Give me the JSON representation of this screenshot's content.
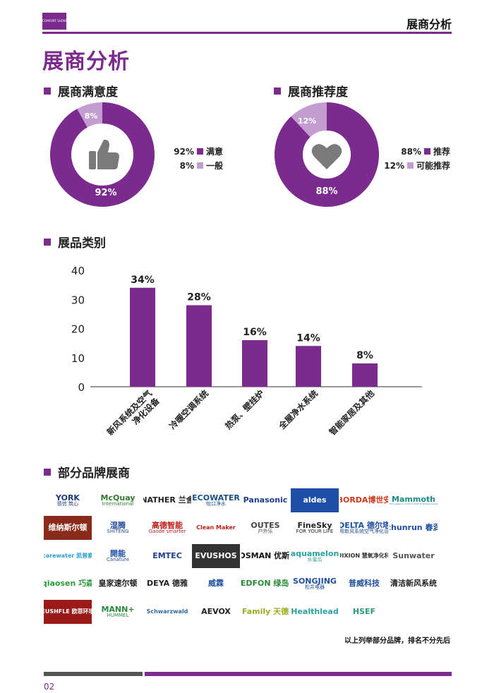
{
  "header": {
    "title": "展商分析",
    "logo_text": "COMFORT SHOW"
  },
  "page_title": "展商分析",
  "satisfaction": {
    "title": "展商满意度",
    "icon": "thumbs-up-icon",
    "slices": [
      {
        "label": "满意",
        "value": 92,
        "text": "92%",
        "color": "#7b2a8e"
      },
      {
        "label": "一般",
        "value": 8,
        "text": "8%",
        "color": "#c39dd0"
      }
    ]
  },
  "recommendation": {
    "title": "展商推荐度",
    "icon": "heart-icon",
    "slices": [
      {
        "label": "推荐",
        "value": 88,
        "text": "88%",
        "color": "#7b2a8e"
      },
      {
        "label": "可能推荐",
        "value": 12,
        "text": "12%",
        "color": "#c39dd0"
      }
    ]
  },
  "chart_data": {
    "type": "bar",
    "title": "展品类别",
    "categories": [
      "新风系统及空气净化设备",
      "冷暖空调系统",
      "热泵、壁挂炉",
      "全屋净水系统",
      "智能家居及其他"
    ],
    "category_lines": [
      [
        "新风系统及空气",
        "净化设备"
      ],
      [
        "冷暖空调系统"
      ],
      [
        "热泵、壁挂炉"
      ],
      [
        "全屋净水系统"
      ],
      [
        "智能家居及其他"
      ]
    ],
    "values": [
      34,
      28,
      16,
      14,
      8
    ],
    "value_labels": [
      "34%",
      "28%",
      "16%",
      "14%",
      "8%"
    ],
    "yticks": [
      0,
      10,
      20,
      30,
      40
    ],
    "ylim": [
      0,
      40
    ],
    "color": "#7b2a8e",
    "grid": false
  },
  "brands_section": {
    "title": "部分品牌展商",
    "rows": [
      [
        {
          "name": "YORK",
          "sub": "德信 筑心",
          "color": "#1a3a7a"
        },
        {
          "name": "McQuay",
          "sub": "International",
          "color": "#2f7a2f"
        },
        {
          "name": "NATHER 兰舍",
          "color": "#222222"
        },
        {
          "name": "ECOWATER",
          "sub": "怡口净水",
          "color": "#1b4f8a"
        },
        {
          "name": "Panasonic",
          "color": "#1e3c8c"
        },
        {
          "name": "aldes",
          "color": "#ffffff",
          "bg": "#1f4ea8"
        },
        {
          "name": "BORDA博世安",
          "color": "#d03a1a"
        },
        {
          "name": "Mammoth",
          "sub": "The Leader in Comfort HVAC & Energy Saving",
          "color": "#1d8a8a"
        }
      ],
      [
        {
          "name": "维纳斯尔顿",
          "color": "#ffffff",
          "bg": "#8a2a1a"
        },
        {
          "name": "湿腾",
          "sub": "SHITENG",
          "color": "#2a4f9a"
        },
        {
          "name": "高德智能",
          "sub": "Gaode smarter",
          "color": "#c0201a"
        },
        {
          "name": "Clean Maker",
          "color": "#c0201a"
        },
        {
          "name": "OUTES",
          "sub": "户外乐",
          "color": "#444444"
        },
        {
          "name": "FineSky",
          "sub": "FOR YOUR LIFE",
          "color": "#222222"
        },
        {
          "name": "DELTA 德尔塔",
          "sub": "家用新风系统空气净化设备",
          "color": "#1e4fa0"
        },
        {
          "name": "chunrun 春润",
          "color": "#1e4fa0"
        }
      ],
      [
        {
          "name": "carewater 凯普索",
          "color": "#2aa0d0"
        },
        {
          "name": "開能",
          "sub": "Canature",
          "color": "#1e4fa0"
        },
        {
          "name": "EMTEC",
          "color": "#1e3c8c"
        },
        {
          "name": "EVUSHOS",
          "color": "#ffffff",
          "bg": "#333333"
        },
        {
          "name": "YOSMAN 优斯曼",
          "color": "#111111"
        },
        {
          "name": "aquamelon",
          "sub": "水蜜瓜",
          "color": "#2aa0a0"
        },
        {
          "name": "HUIXION 慧氧净化科技",
          "color": "#333333"
        },
        {
          "name": "Sunwater",
          "color": "#555555"
        }
      ],
      [
        {
          "name": "qiaosen 巧森",
          "color": "#2a9a3a"
        },
        {
          "name": "皇家速尔顿",
          "color": "#222222"
        },
        {
          "name": "DEYA 德雅",
          "color": "#222222"
        },
        {
          "name": "威霖",
          "color": "#1e4fa0"
        },
        {
          "name": "NEDFON 绿岛风",
          "color": "#2a8a3a"
        },
        {
          "name": "SONGJING",
          "sub": "松井电器",
          "color": "#1e4fa0"
        },
        {
          "name": "普威科技",
          "color": "#1e4fa0"
        },
        {
          "name": "清洁新风系统",
          "color": "#222222"
        }
      ],
      [
        {
          "name": "EUSHFLE 欧菲环境",
          "color": "#ffffff",
          "bg": "#9a1a1a"
        },
        {
          "name": "MANN+",
          "sub": "HUMMEL",
          "color": "#2a8a3a"
        },
        {
          "name": "Schwarzwald",
          "color": "#2a6a9a"
        },
        {
          "name": "AEVOX",
          "color": "#222222"
        },
        {
          "name": "Family 天德",
          "color": "#9ab020"
        },
        {
          "name": "Healthlead",
          "color": "#2aa0a0"
        },
        {
          "name": "HSEF",
          "color": "#2a9a7a"
        }
      ]
    ]
  },
  "note": "以上列举部分品牌，排名不分先后",
  "page_number": "02"
}
